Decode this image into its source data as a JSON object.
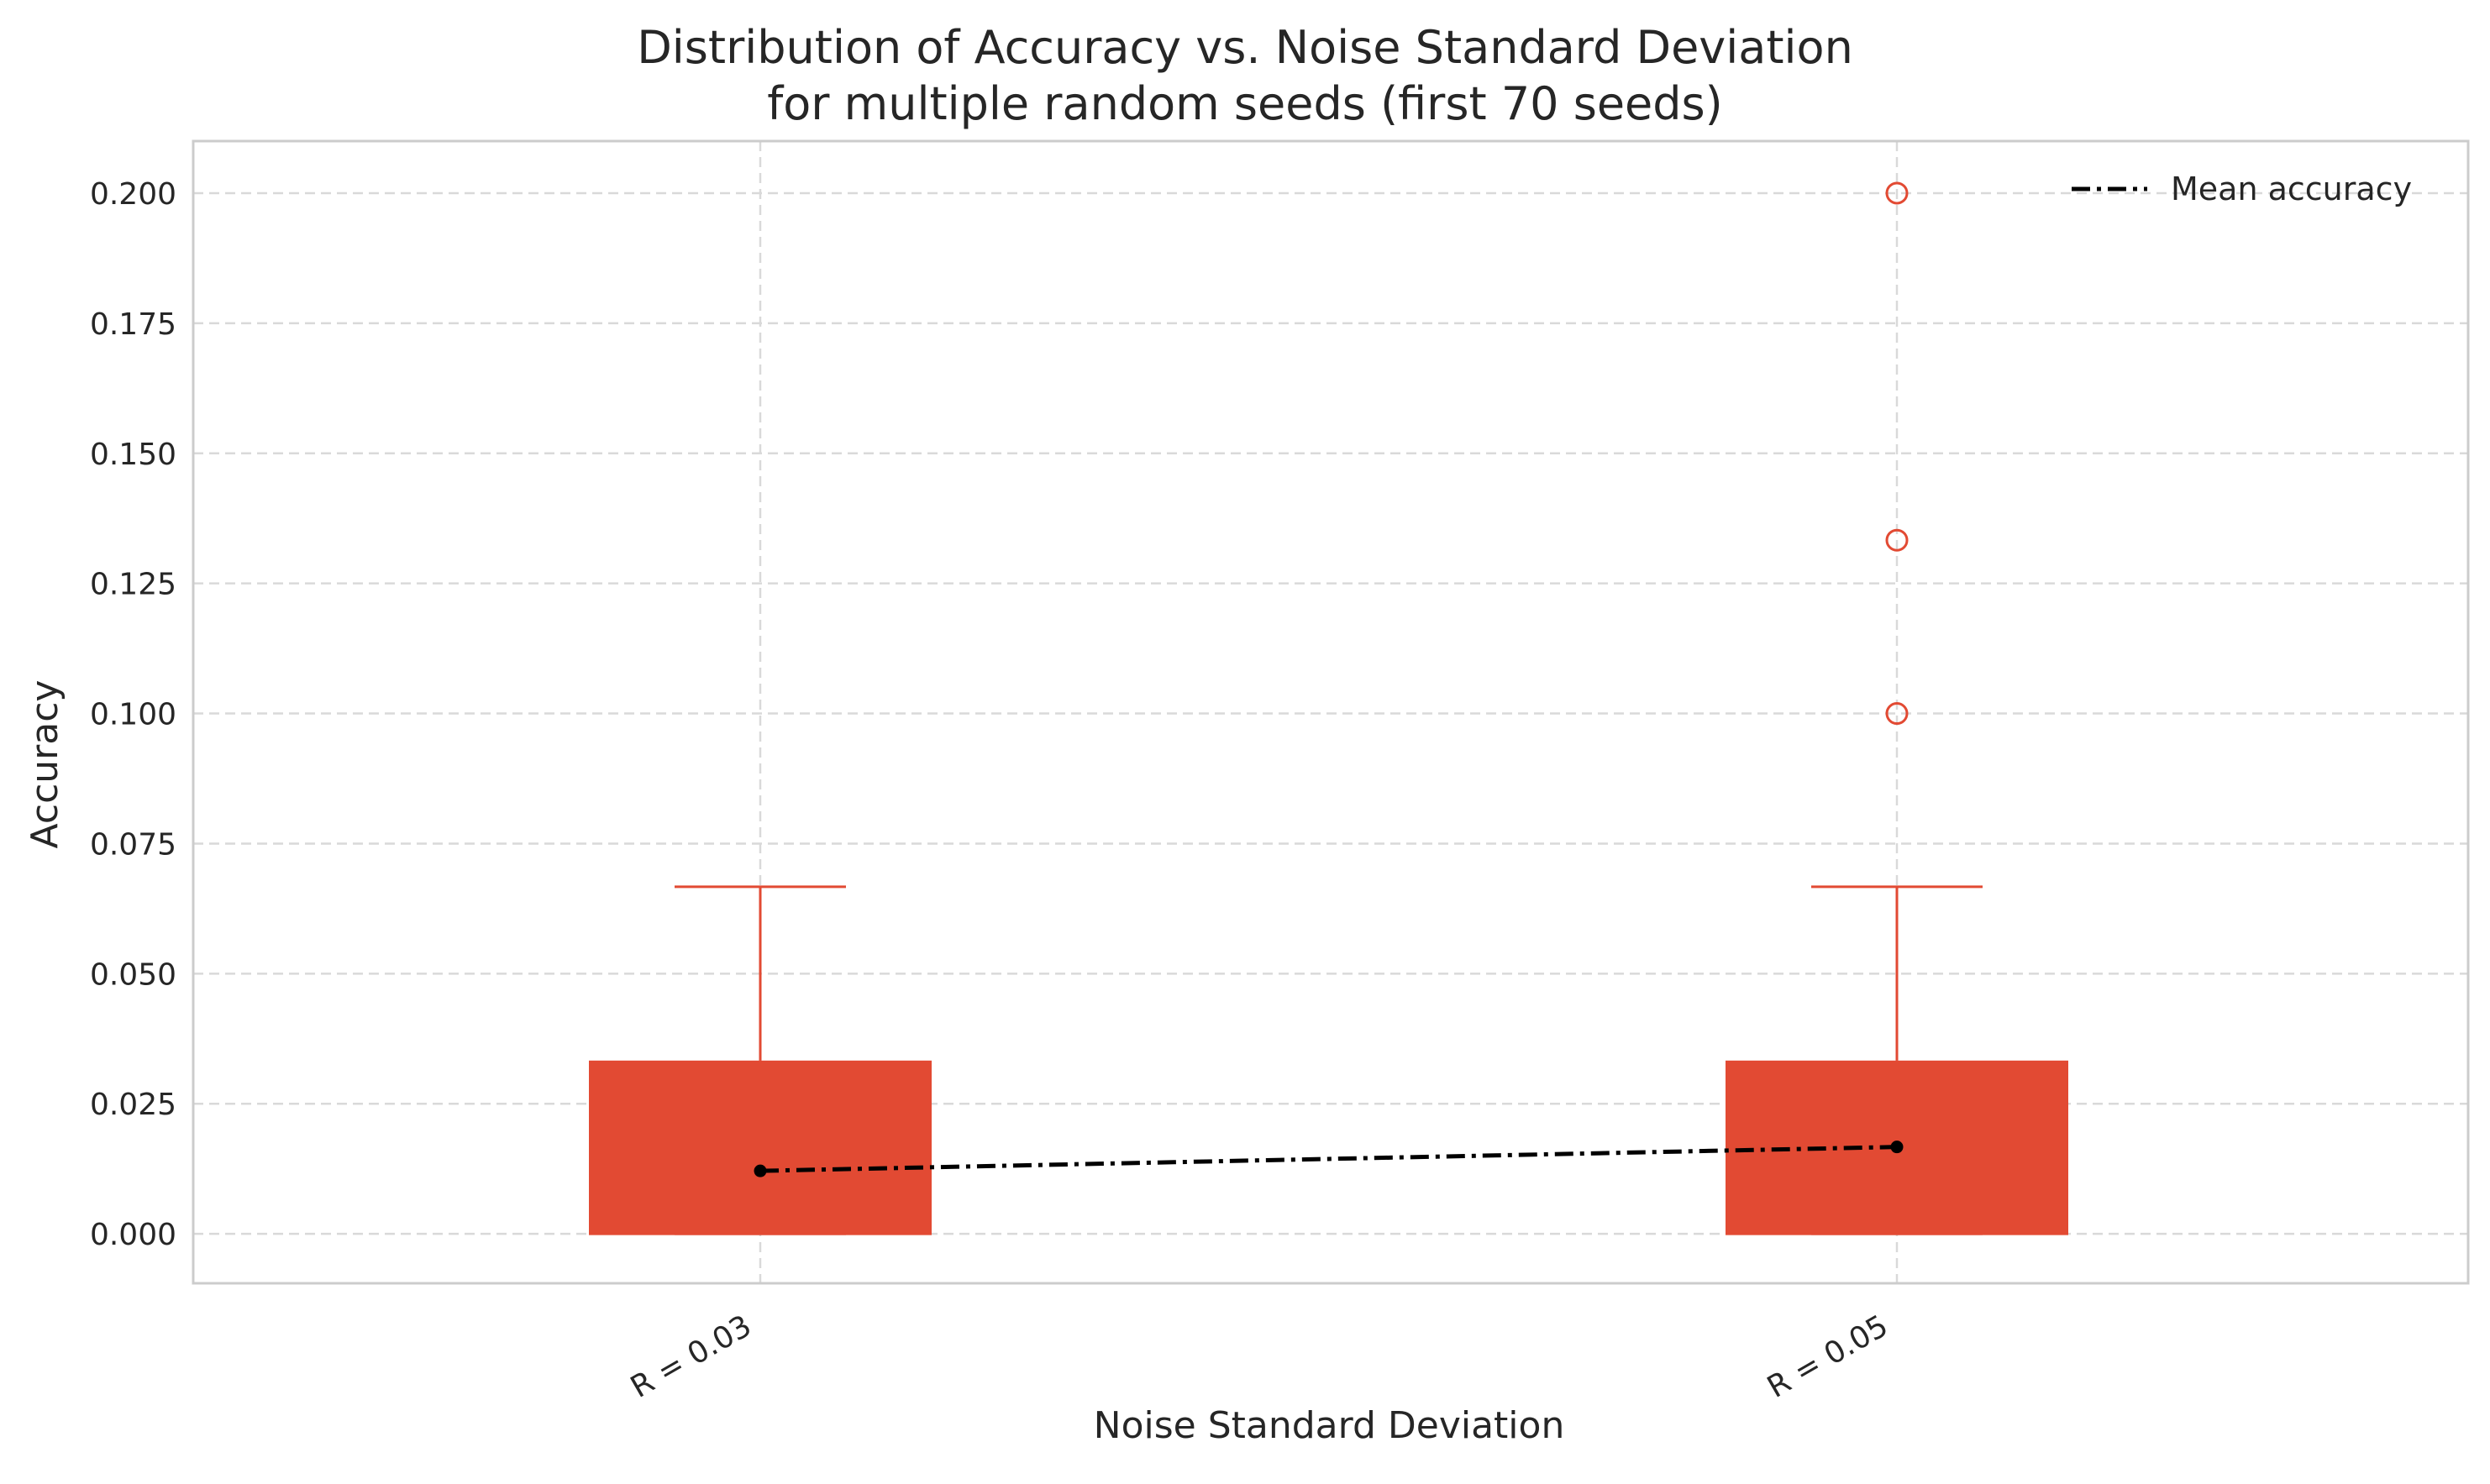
{
  "chart_data": {
    "type": "box",
    "title_line1": "Distribution of Accuracy vs. Noise Standard Deviation",
    "title_line2": "for multiple random seeds (first 70 seeds)",
    "xlabel": "Noise Standard Deviation",
    "ylabel": "Accuracy",
    "categories": [
      "R = 0.03",
      "R = 0.05"
    ],
    "ylim": [
      -0.0095,
      0.21
    ],
    "yticks": [
      0.0,
      0.025,
      0.05,
      0.075,
      0.1,
      0.125,
      0.15,
      0.175,
      0.2
    ],
    "ytick_labels": [
      "0.000",
      "0.025",
      "0.050",
      "0.075",
      "0.100",
      "0.125",
      "0.150",
      "0.175",
      "0.200"
    ],
    "grid": true,
    "legend": {
      "position": "top-right",
      "label": "Mean accuracy"
    },
    "boxes": [
      {
        "category": "R = 0.03",
        "whisker_low": 0.0,
        "q1": 0.0,
        "median": 0.0,
        "q3": 0.0333,
        "whisker_high": 0.0667,
        "outliers": []
      },
      {
        "category": "R = 0.05",
        "whisker_low": 0.0,
        "q1": 0.0,
        "median": 0.0,
        "q3": 0.0333,
        "whisker_high": 0.0667,
        "outliers": [
          0.1,
          0.1333,
          0.2
        ]
      }
    ],
    "mean_series": {
      "name": "Mean accuracy",
      "values": [
        0.0121,
        0.0167
      ]
    },
    "colors": {
      "box": "#e24a33",
      "mean_line": "#000000",
      "grid": "#d9d9d9",
      "spine": "#cccccc"
    }
  }
}
